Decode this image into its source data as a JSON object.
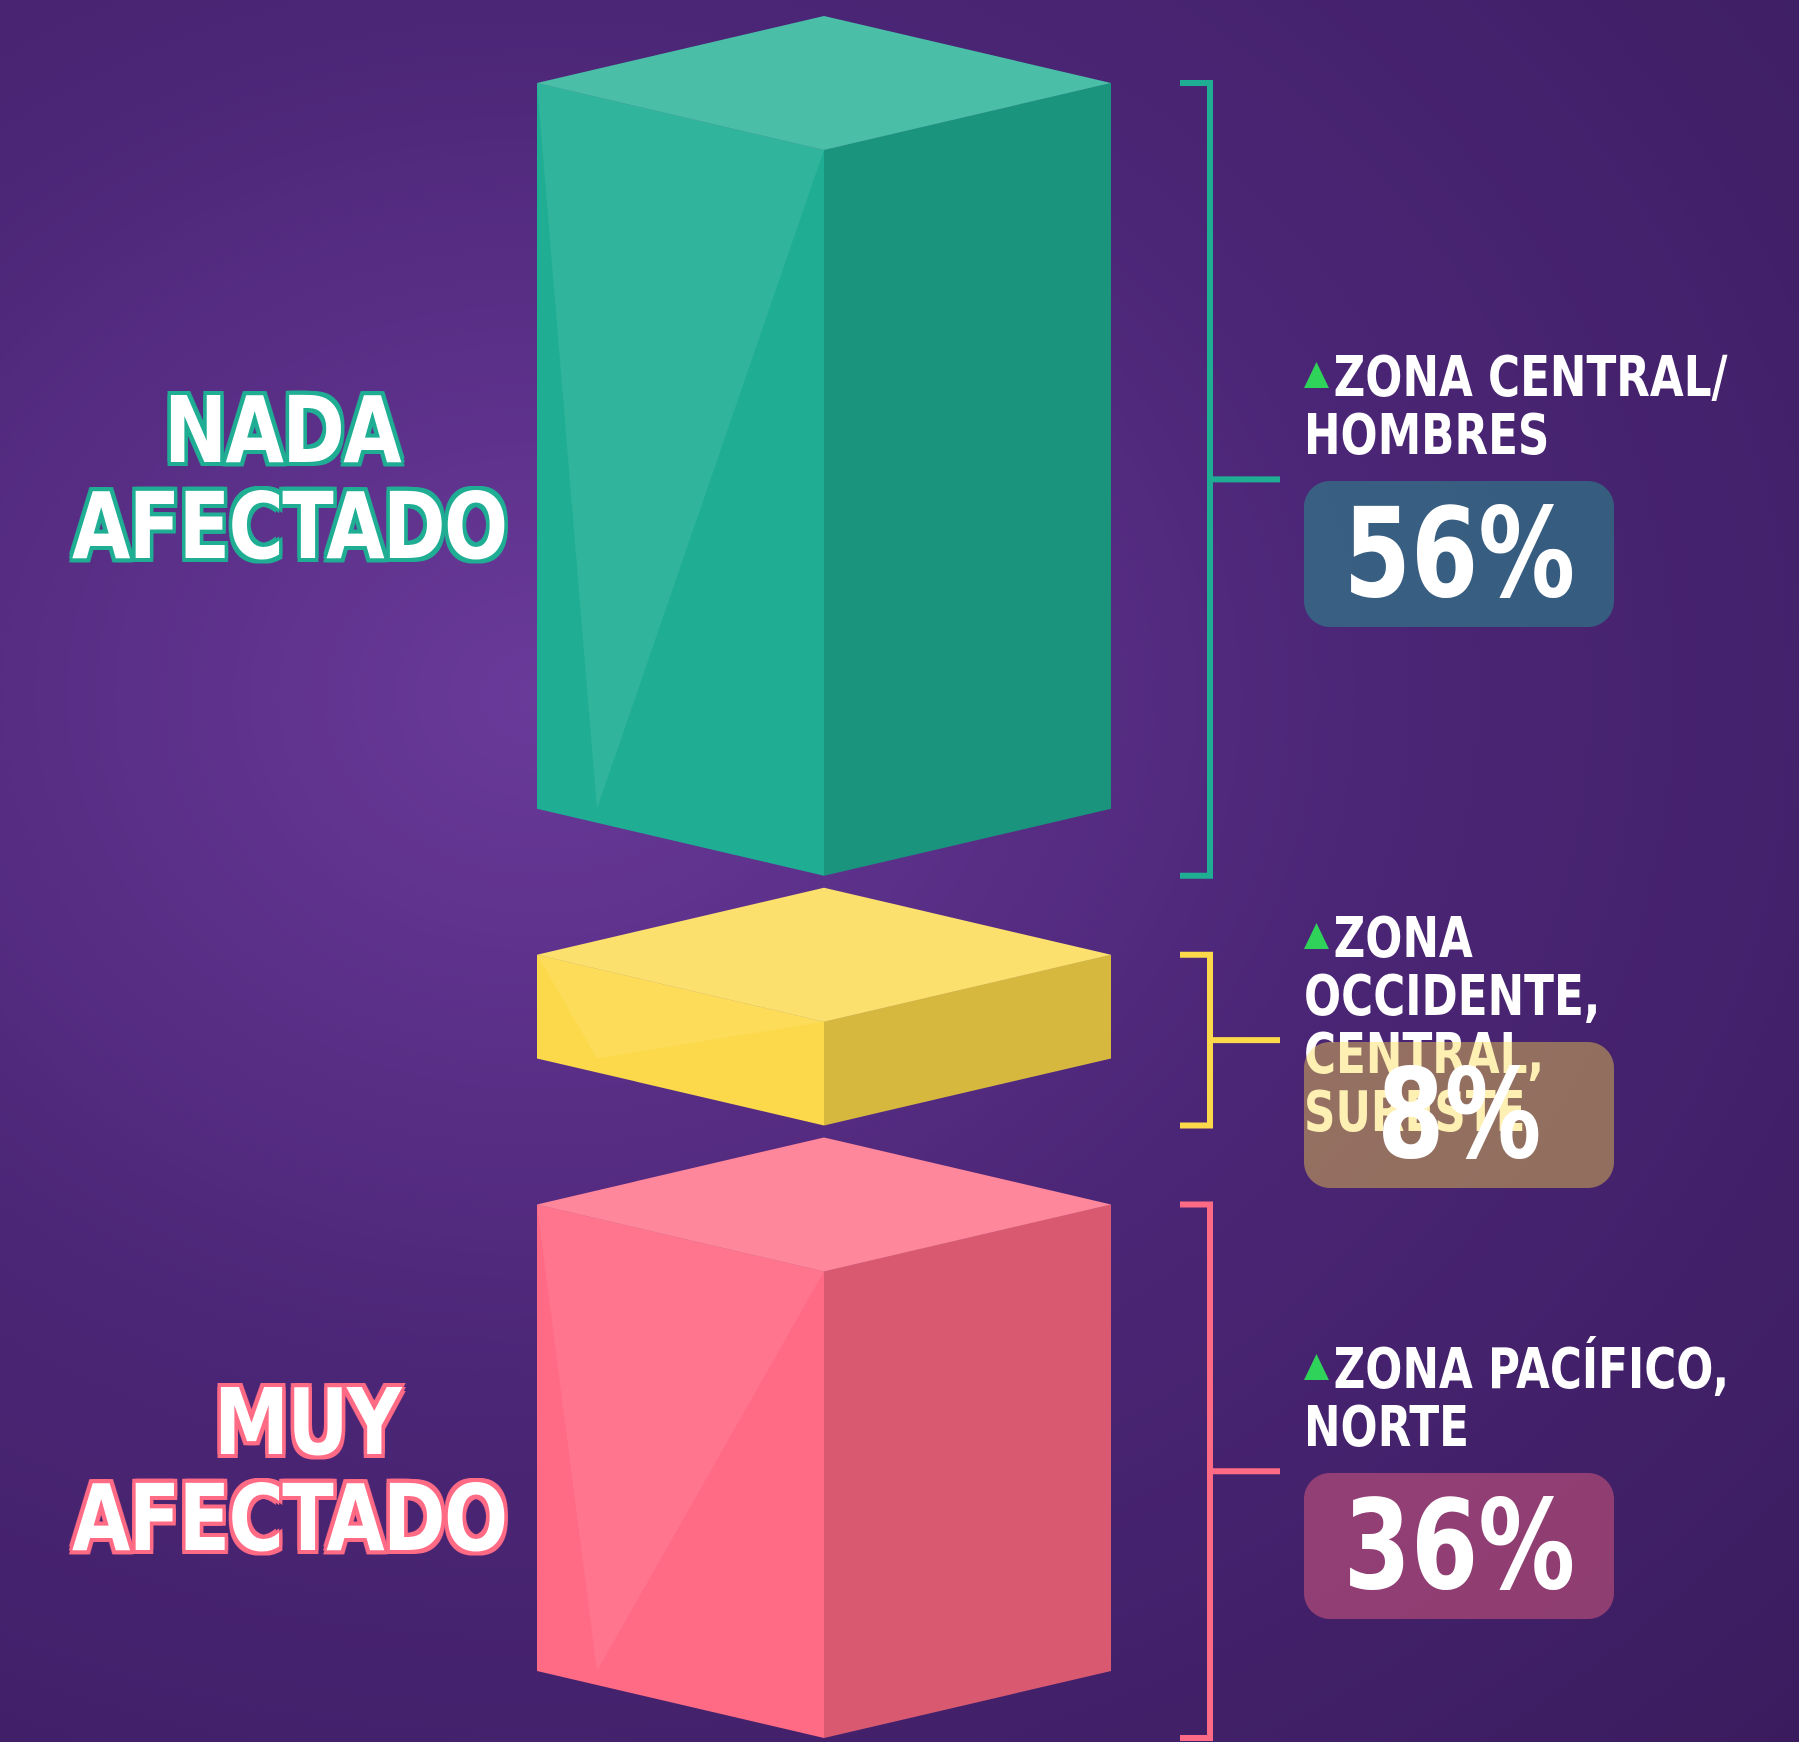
{
  "chart_data": {
    "type": "stacked-bar",
    "categories": [
      "NADA AFECTADO",
      null,
      "MUY AFECTADO"
    ],
    "values": [
      56,
      8,
      36
    ],
    "value_labels": [
      "56%",
      "8%",
      "36%"
    ],
    "notes": [
      "ZONA CENTRAL/ HOMBRES",
      "ZONA OCCIDENTE, CENTRAL, SURESTE",
      "ZONA PACÍFICO, NORTE"
    ],
    "colors": [
      "#1fae93",
      "#fcd94a",
      "#ff6a84"
    ]
  }
}
